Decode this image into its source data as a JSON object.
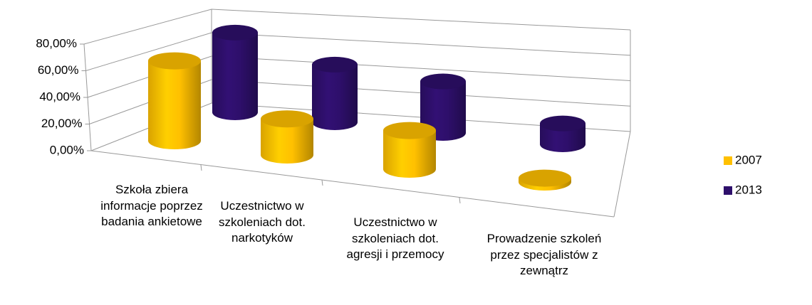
{
  "chart_data": {
    "type": "cylinder3d",
    "categories": [
      "Szkoła zbiera informacje poprzez badania ankietowe",
      "Uczestnictwo w szkoleniach dot. narkotyków",
      "Uczestnictwo w szkoleniach dot. agresji i przemocy",
      "Prowadzenie szkoleń przez specjalistów z zewnątrz"
    ],
    "series": [
      {
        "name": "2007",
        "color": "#FFC000",
        "values": [
          62,
          28,
          30,
          3
        ]
      },
      {
        "name": "2013",
        "color": "#2E0F6B",
        "values": [
          65,
          47,
          42,
          17
        ]
      }
    ],
    "ylim": [
      0,
      80
    ],
    "yticks": [
      {
        "value": 0,
        "label": "0,00%"
      },
      {
        "value": 20,
        "label": "20,00%"
      },
      {
        "value": 40,
        "label": "40,00%"
      },
      {
        "value": 60,
        "label": "60,00%"
      },
      {
        "value": 80,
        "label": "80,00%"
      }
    ],
    "grid": true,
    "legend": "right"
  }
}
